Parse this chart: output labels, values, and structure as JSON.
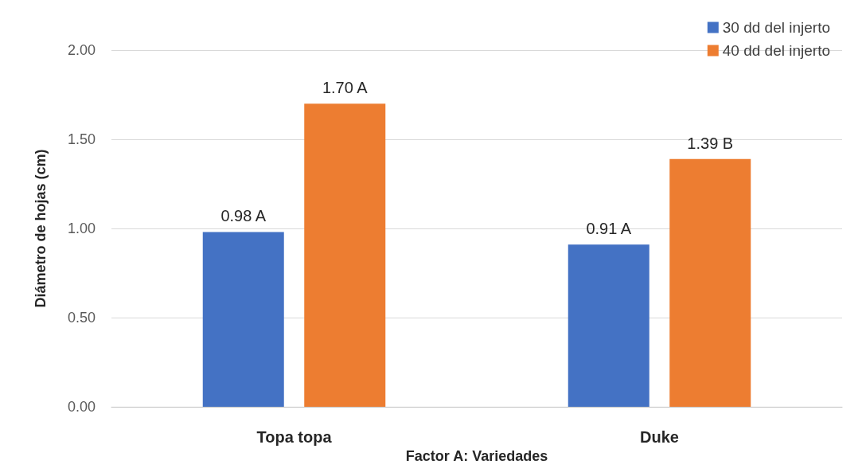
{
  "chart_data": {
    "type": "bar",
    "xlabel": "Factor A: Variedades",
    "ylabel": "Diámetro de hojas (cm)",
    "categories": [
      "Topa topa",
      "Duke"
    ],
    "series": [
      {
        "name": "30 dd del injerto",
        "color": "#4472c4",
        "values": [
          0.98,
          0.91
        ],
        "value_labels": [
          "0.98 A",
          "0.91 A"
        ]
      },
      {
        "name": "40 dd del injerto",
        "color": "#ed7d31",
        "values": [
          1.7,
          1.39
        ],
        "value_labels": [
          "1.70 A",
          "1.39 B"
        ]
      }
    ],
    "ylim": [
      0,
      2
    ],
    "yticks": [
      {
        "value": 0,
        "label": "0.00"
      },
      {
        "value": 0.5,
        "label": "0.50"
      },
      {
        "value": 1,
        "label": "1.00"
      },
      {
        "value": 1.5,
        "label": "1.50"
      },
      {
        "value": 2,
        "label": "2.00"
      }
    ],
    "grid": "y",
    "legend": "top right"
  }
}
